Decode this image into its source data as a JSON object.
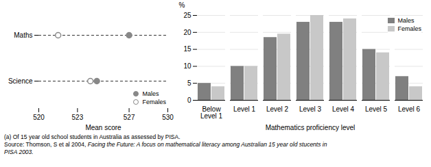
{
  "chart_data": [
    {
      "type": "scatter",
      "orientation": "horizontal",
      "categories": [
        "Maths",
        "Science"
      ],
      "series": [
        {
          "name": "Males",
          "color": "#888888",
          "marker": "filled",
          "values": [
            527.0,
            524.5
          ]
        },
        {
          "name": "Females",
          "color": "#888888",
          "marker": "hollow",
          "values": [
            521.5,
            524.0
          ]
        }
      ],
      "xlabel": "Mean score",
      "xlim": [
        520,
        530
      ],
      "xticks": [
        520,
        523,
        527,
        530
      ],
      "line_style": "dashed",
      "legend": "lower right"
    },
    {
      "type": "bar",
      "categories": [
        "Below\nLevel 1",
        "Level 1",
        "Level 2",
        "Level 3",
        "Level 4",
        "Level 5",
        "Level 6"
      ],
      "series": [
        {
          "name": "Males",
          "color": "#808080",
          "values": [
            5.0,
            10.0,
            18.5,
            23.0,
            23.0,
            15.0,
            7.0
          ]
        },
        {
          "name": "Females",
          "color": "#c8c8c8",
          "values": [
            4.0,
            10.0,
            19.5,
            25.0,
            24.0,
            14.0,
            4.0
          ]
        }
      ],
      "xlabel": "Mathematics proficiency level",
      "ylabel": "%",
      "ylim": [
        0,
        25
      ],
      "yticks": [
        0,
        5,
        10,
        15,
        20,
        25
      ],
      "grid": true,
      "legend": "upper right"
    }
  ],
  "annotations": [
    "(a) Of 15 year old school students in Australia as assessed by PISA.",
    "Source: Thomson, S et al 2004, ",
    "Facing the Future: A focus on mathematical literacy among Australian 15 year old stucents in\nPISA 2003."
  ]
}
